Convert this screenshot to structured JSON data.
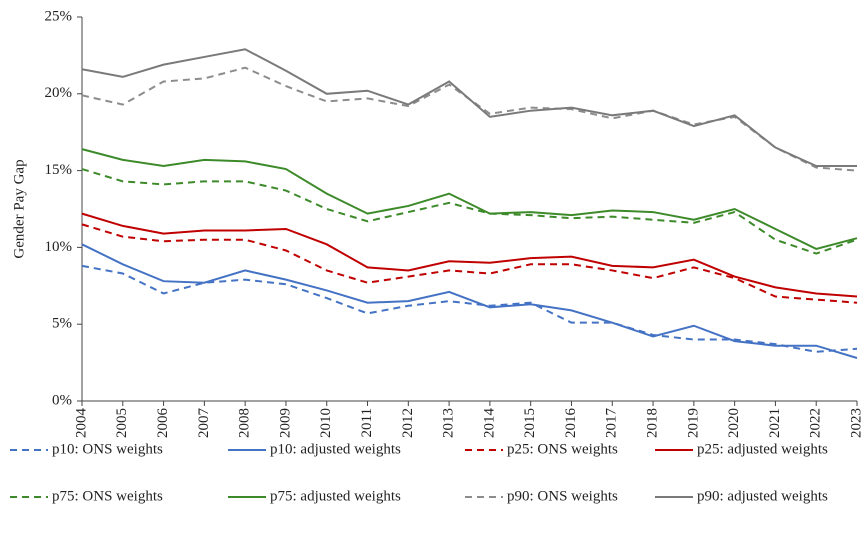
{
  "chart_data": {
    "type": "line",
    "y_label": "Gender Pay Gap",
    "x": [
      2004,
      2005,
      2006,
      2007,
      2008,
      2009,
      2010,
      2011,
      2012,
      2013,
      2014,
      2015,
      2016,
      2017,
      2018,
      2019,
      2020,
      2021,
      2022,
      2023
    ],
    "xlim": [
      2004,
      2023
    ],
    "xticks": [
      2004,
      2005,
      2006,
      2007,
      2008,
      2009,
      2010,
      2011,
      2012,
      2013,
      2014,
      2015,
      2016,
      2017,
      2018,
      2019,
      2020,
      2021,
      2022,
      2023
    ],
    "ylim": [
      0,
      25
    ],
    "yticks": [
      {
        "value": 0,
        "label": "0%"
      },
      {
        "value": 5,
        "label": "5%"
      },
      {
        "value": 10,
        "label": "10%"
      },
      {
        "value": 15,
        "label": "15%"
      },
      {
        "value": 20,
        "label": "20%"
      },
      {
        "value": 25,
        "label": "25%"
      }
    ],
    "series": [
      {
        "name": "p10: ONS weights",
        "color": "#4472c4",
        "dashed": true,
        "values": [
          8.8,
          8.3,
          7.0,
          7.7,
          7.9,
          7.6,
          6.7,
          5.7,
          6.2,
          6.5,
          6.2,
          6.4,
          5.1,
          5.1,
          4.3,
          4.0,
          4.0,
          3.7,
          3.2,
          3.4
        ]
      },
      {
        "name": "p10: adjusted weights",
        "color": "#4472c4",
        "dashed": false,
        "values": [
          10.2,
          8.9,
          7.8,
          7.7,
          8.5,
          7.9,
          7.2,
          6.4,
          6.5,
          7.1,
          6.1,
          6.3,
          5.9,
          5.1,
          4.2,
          4.9,
          3.9,
          3.6,
          3.6,
          2.8
        ]
      },
      {
        "name": "p25: ONS weights",
        "color": "#c00000",
        "dashed": true,
        "values": [
          11.5,
          10.7,
          10.4,
          10.5,
          10.5,
          9.8,
          8.5,
          7.7,
          8.1,
          8.5,
          8.3,
          8.9,
          8.9,
          8.5,
          8.0,
          8.7,
          8.0,
          6.8,
          6.6,
          6.4
        ]
      },
      {
        "name": "p25: adjusted weights",
        "color": "#c00000",
        "dashed": false,
        "values": [
          12.2,
          11.4,
          10.9,
          11.1,
          11.1,
          11.2,
          10.2,
          8.7,
          8.5,
          9.1,
          9.0,
          9.3,
          9.4,
          8.8,
          8.7,
          9.2,
          8.1,
          7.4,
          7.0,
          6.8
        ]
      },
      {
        "name": "p75: ONS weights",
        "color": "#3d8a2a",
        "dashed": true,
        "values": [
          15.1,
          14.3,
          14.1,
          14.3,
          14.3,
          13.7,
          12.5,
          11.7,
          12.3,
          12.9,
          12.2,
          12.1,
          11.9,
          12.0,
          11.8,
          11.6,
          12.3,
          10.5,
          9.6,
          10.5
        ]
      },
      {
        "name": "p75: adjusted weights",
        "color": "#3d8a2a",
        "dashed": false,
        "values": [
          16.4,
          15.7,
          15.3,
          15.7,
          15.6,
          15.1,
          13.5,
          12.2,
          12.7,
          13.5,
          12.2,
          12.3,
          12.1,
          12.4,
          12.3,
          11.8,
          12.5,
          11.2,
          9.9,
          10.6
        ]
      },
      {
        "name": "p90: ONS weights",
        "color": "#8c8c8c",
        "dashed": true,
        "values": [
          19.9,
          19.3,
          20.8,
          21.0,
          21.7,
          20.5,
          19.5,
          19.7,
          19.2,
          20.6,
          18.7,
          19.1,
          19.0,
          18.4,
          18.9,
          18.0,
          18.5,
          16.5,
          15.2,
          15.0
        ]
      },
      {
        "name": "p90: adjusted weights",
        "color": "#7a7a7a",
        "dashed": false,
        "values": [
          21.6,
          21.1,
          21.9,
          22.4,
          22.9,
          21.5,
          20.0,
          20.2,
          19.3,
          20.8,
          18.5,
          18.9,
          19.1,
          18.6,
          18.9,
          17.9,
          18.6,
          16.5,
          15.3,
          15.3
        ]
      }
    ]
  }
}
